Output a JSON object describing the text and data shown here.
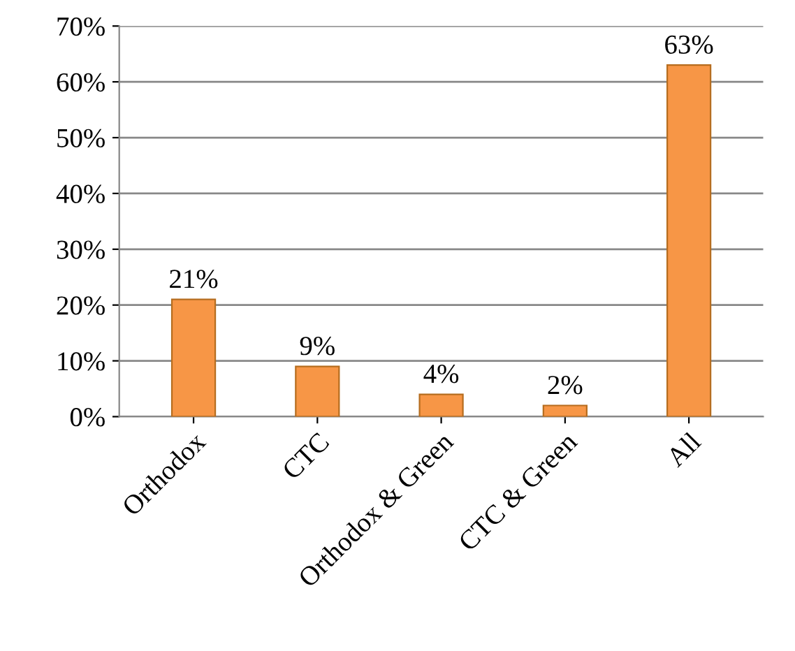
{
  "chart_data": {
    "type": "bar",
    "categories": [
      "Orthodox",
      "CTC",
      "Orthodox & Green",
      "CTC & Green",
      "All"
    ],
    "values": [
      21,
      9,
      4,
      2,
      63
    ],
    "value_labels": [
      "21%",
      "9%",
      "4%",
      "2%",
      "63%"
    ],
    "color": "#f79646",
    "ylim": [
      0,
      70
    ],
    "yticks": [
      {
        "value": 0,
        "label": "0%"
      },
      {
        "value": 10,
        "label": "10%"
      },
      {
        "value": 20,
        "label": "20%"
      },
      {
        "value": 30,
        "label": "30%"
      },
      {
        "value": 40,
        "label": "40%"
      },
      {
        "value": 50,
        "label": "50%"
      },
      {
        "value": 60,
        "label": "60%"
      },
      {
        "value": 70,
        "label": "70%"
      }
    ],
    "grid": "y"
  }
}
